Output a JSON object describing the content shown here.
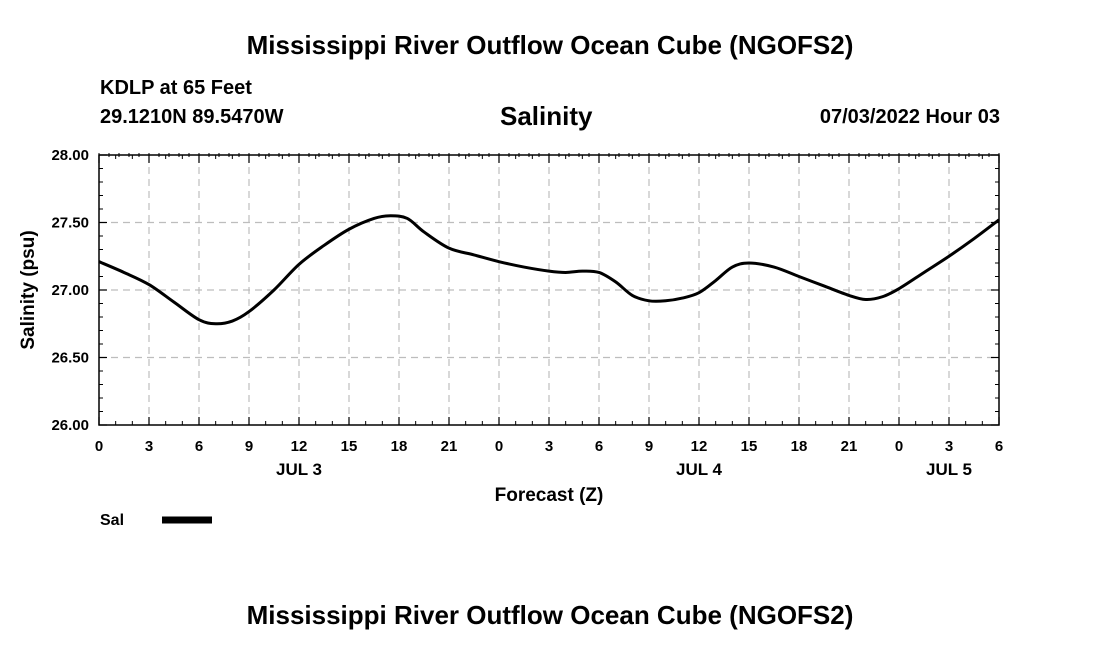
{
  "header": {
    "title": "Mississippi River Outflow Ocean Cube (NGOFS2)",
    "station": "KDLP at 65 Feet",
    "coords": "29.1210N  89.5470W",
    "subtitle": "Salinity",
    "datetime": "07/03/2022 Hour 03"
  },
  "footer": {
    "title": "Mississippi River Outflow Ocean Cube (NGOFS2)"
  },
  "chart_data": {
    "type": "line",
    "title": "Salinity",
    "xlabel": "Forecast (Z)",
    "ylabel": "Salinity (psu)",
    "xlim": [
      0,
      54
    ],
    "ylim": [
      26.0,
      28.0
    ],
    "grid": true,
    "x_ticks": [
      0,
      3,
      6,
      9,
      12,
      15,
      18,
      21,
      24,
      27,
      30,
      33,
      36,
      39,
      42,
      45,
      48,
      51,
      54
    ],
    "x_tick_labels": [
      "0",
      "3",
      "6",
      "9",
      "12",
      "15",
      "18",
      "21",
      "0",
      "3",
      "6",
      "9",
      "12",
      "15",
      "18",
      "21",
      "0",
      "3",
      "6"
    ],
    "y_ticks": [
      26.0,
      26.5,
      27.0,
      27.5,
      28.0
    ],
    "y_tick_labels": [
      "26.00",
      "26.50",
      "27.00",
      "27.50",
      "28.00"
    ],
    "date_labels": [
      {
        "x": 12,
        "label": "JUL 3"
      },
      {
        "x": 36,
        "label": "JUL 4"
      },
      {
        "x": 51,
        "label": "JUL 5"
      }
    ],
    "legend": {
      "label": "Sal",
      "position": "bottom-left"
    },
    "series": [
      {
        "name": "Sal",
        "color": "#000000",
        "x": [
          0,
          1.5,
          3,
          4.5,
          6,
          7,
          8,
          9,
          10.5,
          12,
          13.5,
          15,
          16.5,
          17.5,
          18.5,
          19.5,
          21,
          22.5,
          24,
          25.5,
          27,
          28,
          29,
          30,
          31,
          32,
          33,
          34,
          35,
          36,
          37,
          38,
          39,
          40.5,
          42,
          43.5,
          45,
          46,
          47,
          48,
          49.5,
          51,
          52.5,
          54
        ],
        "values": [
          27.21,
          27.13,
          27.04,
          26.91,
          26.78,
          26.75,
          26.77,
          26.84,
          27.0,
          27.19,
          27.33,
          27.45,
          27.53,
          27.55,
          27.53,
          27.43,
          27.31,
          27.26,
          27.21,
          27.17,
          27.14,
          27.13,
          27.14,
          27.13,
          27.06,
          26.96,
          26.92,
          26.92,
          26.94,
          26.98,
          27.07,
          27.17,
          27.2,
          27.17,
          27.1,
          27.03,
          26.96,
          26.93,
          26.95,
          27.01,
          27.13,
          27.25,
          27.38,
          27.52
        ]
      }
    ]
  }
}
